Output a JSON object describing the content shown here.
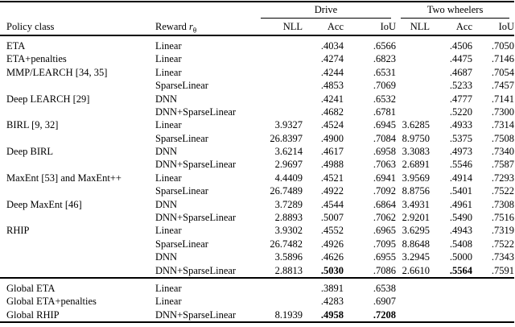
{
  "colors": {
    "background": "#ffffff",
    "text": "#000000",
    "rule": "#000000"
  },
  "table": {
    "headers": {
      "policy": "Policy class",
      "reward_prefix": "Reward",
      "reward_var": "r",
      "reward_sub": "θ",
      "groups": [
        {
          "label": "Drive"
        },
        {
          "label": "Two wheelers"
        }
      ],
      "metrics": [
        "NLL",
        "Acc",
        "IoU"
      ]
    },
    "sections": [
      {
        "name": "per-metro",
        "rows": [
          {
            "policy": "ETA",
            "reward": "Linear",
            "cells": [
              "",
              ".4034",
              ".6566",
              "",
              ".4506",
              ".7050"
            ],
            "bold": []
          },
          {
            "policy": "ETA+penalties",
            "reward": "Linear",
            "cells": [
              "",
              ".4274",
              ".6823",
              "",
              ".4475",
              ".7146"
            ],
            "bold": []
          },
          {
            "policy": "MMP/LEARCH [34, 35]",
            "reward": "Linear",
            "cells": [
              "",
              ".4244",
              ".6531",
              "",
              ".4687",
              ".7054"
            ],
            "bold": []
          },
          {
            "policy": "",
            "reward": "SparseLinear",
            "cells": [
              "",
              ".4853",
              ".7069",
              "",
              ".5233",
              ".7457"
            ],
            "bold": []
          },
          {
            "policy": "Deep LEARCH [29]",
            "reward": "DNN",
            "cells": [
              "",
              ".4241",
              ".6532",
              "",
              ".4777",
              ".7141"
            ],
            "bold": []
          },
          {
            "policy": "",
            "reward": "DNN+SparseLinear",
            "cells": [
              "",
              ".4682",
              ".6781",
              "",
              ".5220",
              ".7300"
            ],
            "bold": []
          },
          {
            "policy": "BIRL [9, 32]",
            "reward": "Linear",
            "cells": [
              "3.9327",
              ".4524",
              ".6945",
              "3.6285",
              ".4933",
              ".7314"
            ],
            "bold": []
          },
          {
            "policy": "",
            "reward": "SparseLinear",
            "cells": [
              "26.8397",
              ".4900",
              ".7084",
              "8.9750",
              ".5375",
              ".7508"
            ],
            "bold": []
          },
          {
            "policy": "Deep BIRL",
            "reward": "DNN",
            "cells": [
              "3.6214",
              ".4617",
              ".6958",
              "3.3083",
              ".4973",
              ".7340"
            ],
            "bold": []
          },
          {
            "policy": "",
            "reward": "DNN+SparseLinear",
            "cells": [
              "2.9697",
              ".4988",
              ".7063",
              "2.6891",
              ".5546",
              ".7587"
            ],
            "bold": []
          },
          {
            "policy": "MaxEnt [53] and MaxEnt++",
            "reward": "Linear",
            "cells": [
              "4.4409",
              ".4521",
              ".6941",
              "3.9569",
              ".4914",
              ".7293"
            ],
            "bold": []
          },
          {
            "policy": "",
            "reward": "SparseLinear",
            "cells": [
              "26.7489",
              ".4922",
              ".7092",
              "8.8756",
              ".5401",
              ".7522"
            ],
            "bold": []
          },
          {
            "policy": "Deep MaxEnt [46]",
            "reward": "DNN",
            "cells": [
              "3.7289",
              ".4544",
              ".6864",
              "3.4931",
              ".4961",
              ".7308"
            ],
            "bold": []
          },
          {
            "policy": "",
            "reward": "DNN+SparseLinear",
            "cells": [
              "2.8893",
              ".5007",
              ".7062",
              "2.9201",
              ".5490",
              ".7516"
            ],
            "bold": []
          },
          {
            "policy": "RHIP",
            "reward": "Linear",
            "cells": [
              "3.9302",
              ".4552",
              ".6965",
              "3.6295",
              ".4943",
              ".7319"
            ],
            "bold": []
          },
          {
            "policy": "",
            "reward": "SparseLinear",
            "cells": [
              "26.7482",
              ".4926",
              ".7095",
              "8.8648",
              ".5408",
              ".7522"
            ],
            "bold": []
          },
          {
            "policy": "",
            "reward": "DNN",
            "cells": [
              "3.5896",
              ".4626",
              ".6955",
              "3.2945",
              ".5000",
              ".7343"
            ],
            "bold": []
          },
          {
            "policy": "",
            "reward": "DNN+SparseLinear",
            "cells": [
              "2.8813",
              ".5030",
              ".7086",
              "2.6610",
              ".5564",
              ".7591"
            ],
            "bold": [
              1,
              4
            ]
          }
        ]
      },
      {
        "name": "global",
        "rows": [
          {
            "policy": "Global ETA",
            "reward": "Linear",
            "cells": [
              "",
              ".3891",
              ".6538",
              "",
              "",
              ""
            ],
            "bold": []
          },
          {
            "policy": "Global ETA+penalties",
            "reward": "Linear",
            "cells": [
              "",
              ".4283",
              ".6907",
              "",
              "",
              ""
            ],
            "bold": []
          },
          {
            "policy": "Global RHIP",
            "reward": "DNN+SparseLinear",
            "cells": [
              "8.1939",
              ".4958",
              ".7208",
              "",
              "",
              ""
            ],
            "bold": [
              1,
              2
            ]
          }
        ]
      }
    ]
  }
}
